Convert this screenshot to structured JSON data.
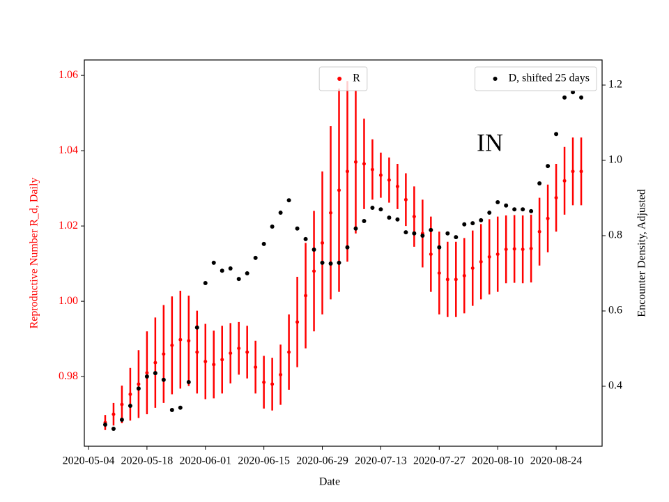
{
  "chart_data": {
    "type": "errorbar_scatter",
    "annotation": "IN",
    "xlabel": "Date",
    "ylabel": "Reproductive Number R_d, Daily",
    "y2label": "Encounter Density, Adjusted",
    "xlim": [
      "2020-05-03",
      "2020-09-04"
    ],
    "xticks": [
      "2020-05-04",
      "2020-05-18",
      "2020-06-01",
      "2020-06-15",
      "2020-06-29",
      "2020-07-13",
      "2020-07-27",
      "2020-08-10",
      "2020-08-24"
    ],
    "ylim": [
      0.9615,
      1.0641
    ],
    "yticks": [
      0.98,
      {
        "value": 1,
        "label": "1.00"
      },
      1.02,
      1.04,
      1.06
    ],
    "y2lim": [
      0.2407,
      1.2667
    ],
    "y2ticks": [
      0.4,
      0.6,
      0.8,
      {
        "value": 1,
        "label": "1.0"
      },
      1.2
    ],
    "x": [
      "2020-05-08",
      "2020-05-10",
      "2020-05-12",
      "2020-05-14",
      "2020-05-16",
      "2020-05-18",
      "2020-05-20",
      "2020-05-22",
      "2020-05-24",
      "2020-05-26",
      "2020-05-28",
      "2020-05-30",
      "2020-06-01",
      "2020-06-03",
      "2020-06-05",
      "2020-06-07",
      "2020-06-09",
      "2020-06-11",
      "2020-06-13",
      "2020-06-15",
      "2020-06-17",
      "2020-06-19",
      "2020-06-21",
      "2020-06-23",
      "2020-06-25",
      "2020-06-27",
      "2020-06-29",
      "2020-07-01",
      "2020-07-03",
      "2020-07-05",
      "2020-07-07",
      "2020-07-09",
      "2020-07-11",
      "2020-07-13",
      "2020-07-15",
      "2020-07-17",
      "2020-07-19",
      "2020-07-21",
      "2020-07-23",
      "2020-07-25",
      "2020-07-27",
      "2020-07-29",
      "2020-07-31",
      "2020-08-02",
      "2020-08-04",
      "2020-08-06",
      "2020-08-08",
      "2020-08-10",
      "2020-08-12",
      "2020-08-14",
      "2020-08-16",
      "2020-08-18",
      "2020-08-20",
      "2020-08-22",
      "2020-08-24",
      "2020-08-26",
      "2020-08-28",
      "2020-08-30"
    ],
    "series": [
      {
        "name": "R",
        "color": "#ff0000",
        "legend_loc": "upper center",
        "values": [
          0.9678,
          0.97,
          0.9726,
          0.9753,
          0.978,
          0.981,
          0.9837,
          0.986,
          0.9883,
          0.9898,
          0.9895,
          0.9865,
          0.984,
          0.9832,
          0.9845,
          0.9862,
          0.9875,
          0.9865,
          0.9825,
          0.9785,
          0.978,
          0.9805,
          0.9865,
          0.9945,
          1.0015,
          1.008,
          1.0155,
          1.0235,
          1.0295,
          1.0345,
          1.037,
          1.0365,
          1.035,
          1.0335,
          1.0322,
          1.0305,
          1.027,
          1.0225,
          1.018,
          1.0125,
          1.0075,
          1.0058,
          1.0058,
          1.0068,
          1.0088,
          1.0105,
          1.0118,
          1.0125,
          1.0138,
          1.0139,
          1.0138,
          1.014,
          1.0185,
          1.022,
          1.0275,
          1.032,
          1.0345,
          1.0345
        ],
        "errors": [
          0.002,
          0.003,
          0.005,
          0.007,
          0.009,
          0.011,
          0.012,
          0.013,
          0.013,
          0.013,
          0.012,
          0.011,
          0.01,
          0.009,
          0.009,
          0.008,
          0.007,
          0.007,
          0.007,
          0.007,
          0.007,
          0.008,
          0.01,
          0.012,
          0.014,
          0.016,
          0.019,
          0.023,
          0.027,
          0.024,
          0.019,
          0.012,
          0.008,
          0.006,
          0.006,
          0.006,
          0.007,
          0.008,
          0.009,
          0.01,
          0.011,
          0.01,
          0.01,
          0.01,
          0.01,
          0.01,
          0.01,
          0.01,
          0.009,
          0.009,
          0.009,
          0.009,
          0.009,
          0.009,
          0.009,
          0.009,
          0.009,
          0.009
        ]
      },
      {
        "name": "D, shifted 25 days",
        "color": "#000000",
        "axis": "y2",
        "legend_loc": "upper right",
        "values": [
          0.298,
          0.287,
          0.311,
          0.348,
          0.394,
          0.426,
          0.435,
          0.417,
          0.337,
          0.343,
          0.411,
          0.556,
          0.674,
          0.728,
          0.707,
          0.713,
          0.685,
          0.7,
          0.741,
          0.778,
          0.824,
          0.861,
          0.894,
          0.819,
          0.791,
          0.763,
          0.728,
          0.726,
          0.728,
          0.769,
          0.819,
          0.839,
          0.874,
          0.87,
          0.848,
          0.843,
          0.809,
          0.806,
          0.8,
          0.815,
          0.769,
          0.806,
          0.796,
          0.83,
          0.833,
          0.841,
          0.861,
          0.889,
          0.88,
          0.87,
          0.87,
          0.865,
          0.939,
          0.985,
          1.07,
          1.167,
          1.181,
          1.167
        ]
      }
    ]
  }
}
